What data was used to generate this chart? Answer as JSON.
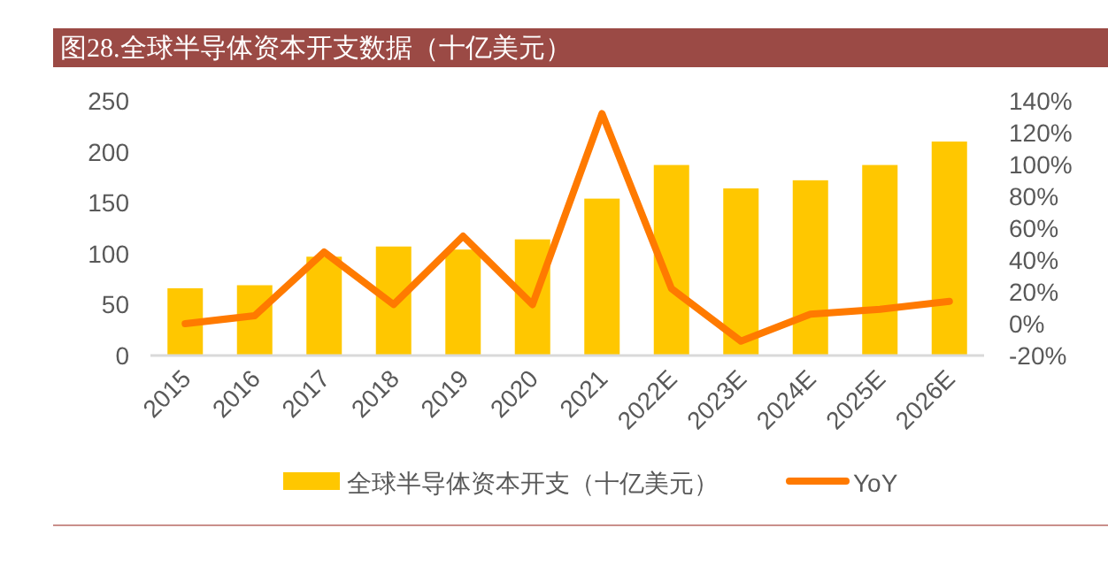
{
  "chart_data": {
    "type": "bar",
    "title": "图28.全球半导体资本开支数据（十亿美元）",
    "categories": [
      "2015",
      "2016",
      "2017",
      "2018",
      "2019",
      "2020",
      "2021",
      "2022E",
      "2023E",
      "2024E",
      "2025E",
      "2026E"
    ],
    "series": [
      {
        "name": "全球半导体资本开支（十亿美元）",
        "color": "#ffc700",
        "values": [
          66,
          69,
          97,
          107,
          104,
          114,
          154,
          187,
          164,
          172,
          187,
          210
        ]
      },
      {
        "name": "YoY",
        "type": "line",
        "axis": "y2",
        "color": "#ff7a00",
        "values": [
          0,
          5,
          45,
          12,
          55,
          12,
          132,
          22,
          -11,
          6,
          9,
          14
        ]
      }
    ],
    "ylim": [
      0,
      250
    ],
    "yticks": [
      0,
      50,
      100,
      150,
      200,
      250
    ],
    "y2lim": [
      -20,
      140
    ],
    "y2ticks": [
      {
        "value": -20,
        "label": "-20%"
      },
      {
        "value": 0,
        "label": "0%"
      },
      {
        "value": 20,
        "label": "20%"
      },
      {
        "value": 40,
        "label": "40%"
      },
      {
        "value": 60,
        "label": "60%"
      },
      {
        "value": 80,
        "label": "80%"
      },
      {
        "value": 100,
        "label": "100%"
      },
      {
        "value": 120,
        "label": "120%"
      },
      {
        "value": 140,
        "label": "140%"
      }
    ],
    "legend": "bottom",
    "grid": false
  }
}
